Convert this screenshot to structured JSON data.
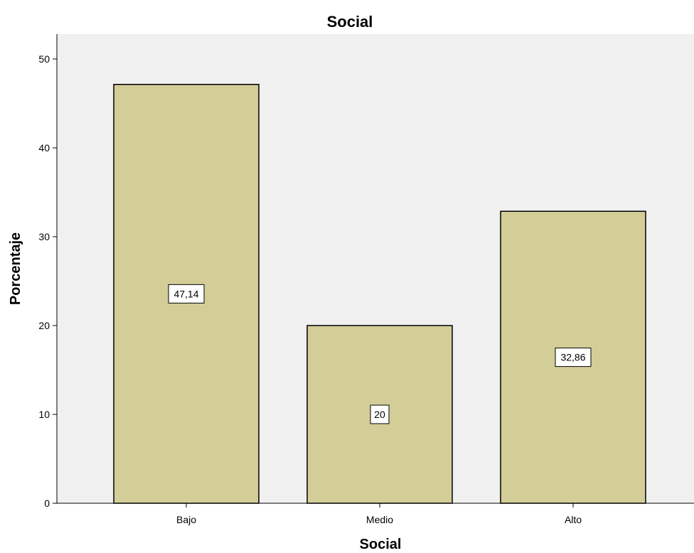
{
  "chart_data": {
    "type": "bar",
    "title": "Social",
    "xlabel": "Social",
    "ylabel": "Porcentaje",
    "categories": [
      "Bajo",
      "Medio",
      "Alto"
    ],
    "values": [
      47.14,
      20,
      32.86
    ],
    "data_labels": [
      "47,14",
      "20",
      "32,86"
    ],
    "ylim": [
      0,
      50
    ],
    "yticks": [
      0,
      10,
      20,
      30,
      40,
      50
    ],
    "ytick_labels": [
      "0",
      "10",
      "20",
      "30",
      "40",
      "50"
    ],
    "grid": false,
    "colors": {
      "bar_fill": "#d3ce98",
      "bar_stroke": "#000000",
      "plot_background": "#f0f0f0",
      "label_box": "#ffffff"
    }
  }
}
